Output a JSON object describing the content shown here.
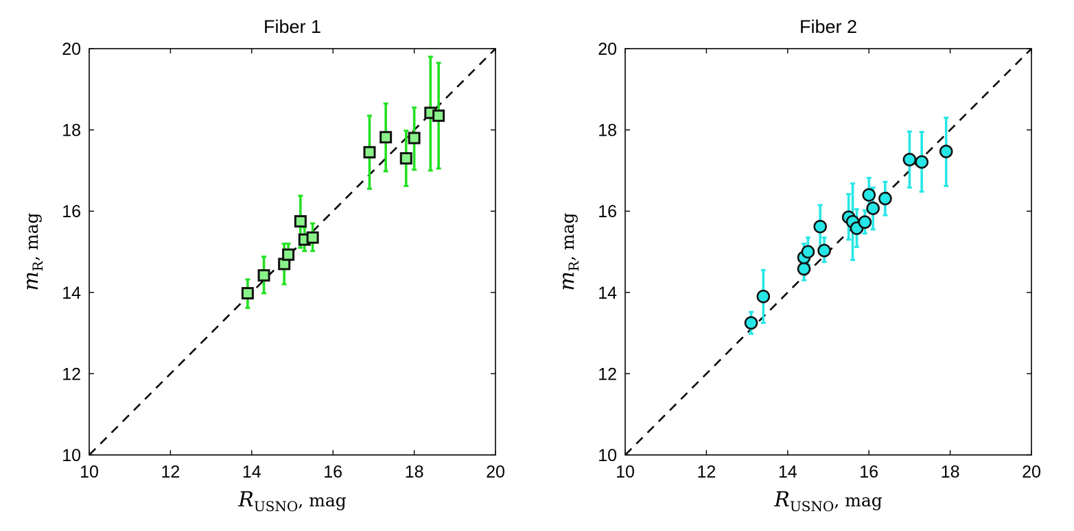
{
  "chart_data": [
    {
      "type": "scatter",
      "title": "Fiber 1",
      "xlabel": {
        "main": "R",
        "sub": "USNO",
        "suffix": ", mag"
      },
      "ylabel": {
        "main": "m",
        "sub": "R",
        "suffix": ", mag"
      },
      "xlim": [
        10,
        20
      ],
      "ylim": [
        10,
        20
      ],
      "xticks": [
        "10",
        "12",
        "14",
        "16",
        "18",
        "20"
      ],
      "yticks": [
        "10",
        "12",
        "14",
        "16",
        "18",
        "20"
      ],
      "grid": false,
      "reference_line": {
        "from": [
          10,
          10
        ],
        "to": [
          20,
          20
        ],
        "style": "dashed",
        "color": "#000000"
      },
      "marker": "square",
      "marker_fill": "#8af28a",
      "errorbar_color": "#22e022",
      "marker_edge": "#111111",
      "points": [
        {
          "x": 13.9,
          "y": 13.98,
          "low": 13.62,
          "high": 14.32
        },
        {
          "x": 14.3,
          "y": 14.42,
          "low": 13.98,
          "high": 14.88
        },
        {
          "x": 14.8,
          "y": 14.7,
          "low": 14.2,
          "high": 15.2
        },
        {
          "x": 14.9,
          "y": 14.93,
          "low": 14.73,
          "high": 15.2
        },
        {
          "x": 15.2,
          "y": 15.75,
          "low": 15.1,
          "high": 16.38
        },
        {
          "x": 15.3,
          "y": 15.3,
          "low": 15.02,
          "high": 15.6
        },
        {
          "x": 15.5,
          "y": 15.35,
          "low": 15.02,
          "high": 15.7
        },
        {
          "x": 16.9,
          "y": 17.45,
          "low": 16.55,
          "high": 18.35
        },
        {
          "x": 17.3,
          "y": 17.82,
          "low": 16.98,
          "high": 18.65
        },
        {
          "x": 17.8,
          "y": 17.3,
          "low": 16.62,
          "high": 17.98
        },
        {
          "x": 18.0,
          "y": 17.8,
          "low": 17.02,
          "high": 18.55
        },
        {
          "x": 18.4,
          "y": 18.42,
          "low": 17.0,
          "high": 19.8
        },
        {
          "x": 18.6,
          "y": 18.35,
          "low": 17.05,
          "high": 19.65
        }
      ]
    },
    {
      "type": "scatter",
      "title": "Fiber 2",
      "xlabel": {
        "main": "R",
        "sub": "USNO",
        "suffix": ", mag"
      },
      "ylabel": {
        "main": "m",
        "sub": "R",
        "suffix": ", mag"
      },
      "xlim": [
        10,
        20
      ],
      "ylim": [
        10,
        20
      ],
      "xticks": [
        "10",
        "12",
        "14",
        "16",
        "18",
        "20"
      ],
      "yticks": [
        "10",
        "12",
        "14",
        "16",
        "18",
        "20"
      ],
      "grid": false,
      "reference_line": {
        "from": [
          10,
          10
        ],
        "to": [
          20,
          20
        ],
        "style": "dashed",
        "color": "#000000"
      },
      "marker": "circle",
      "marker_fill": "#27e6e6",
      "errorbar_color": "#27e6e6",
      "marker_edge": "#111111",
      "points": [
        {
          "x": 13.1,
          "y": 13.25,
          "low": 12.98,
          "high": 13.52
        },
        {
          "x": 13.4,
          "y": 13.9,
          "low": 13.25,
          "high": 14.55
        },
        {
          "x": 14.4,
          "y": 14.58,
          "low": 14.3,
          "high": 14.92
        },
        {
          "x": 14.4,
          "y": 14.86,
          "low": 14.56,
          "high": 15.2
        },
        {
          "x": 14.5,
          "y": 15.0,
          "low": 14.68,
          "high": 15.35
        },
        {
          "x": 14.8,
          "y": 15.62,
          "low": 15.08,
          "high": 16.15
        },
        {
          "x": 14.9,
          "y": 15.03,
          "low": 14.75,
          "high": 15.35
        },
        {
          "x": 15.5,
          "y": 15.85,
          "low": 15.3,
          "high": 16.42
        },
        {
          "x": 15.6,
          "y": 15.74,
          "low": 14.8,
          "high": 16.68
        },
        {
          "x": 15.7,
          "y": 15.58,
          "low": 15.12,
          "high": 16.05
        },
        {
          "x": 15.9,
          "y": 15.73,
          "low": 15.45,
          "high": 16.02
        },
        {
          "x": 16.0,
          "y": 16.4,
          "low": 15.98,
          "high": 16.82
        },
        {
          "x": 16.1,
          "y": 16.07,
          "low": 15.55,
          "high": 16.58
        },
        {
          "x": 16.4,
          "y": 16.31,
          "low": 15.9,
          "high": 16.72
        },
        {
          "x": 17.0,
          "y": 17.27,
          "low": 16.58,
          "high": 17.96
        },
        {
          "x": 17.3,
          "y": 17.21,
          "low": 16.48,
          "high": 17.95
        },
        {
          "x": 17.9,
          "y": 17.47,
          "low": 16.62,
          "high": 18.3
        }
      ]
    }
  ]
}
